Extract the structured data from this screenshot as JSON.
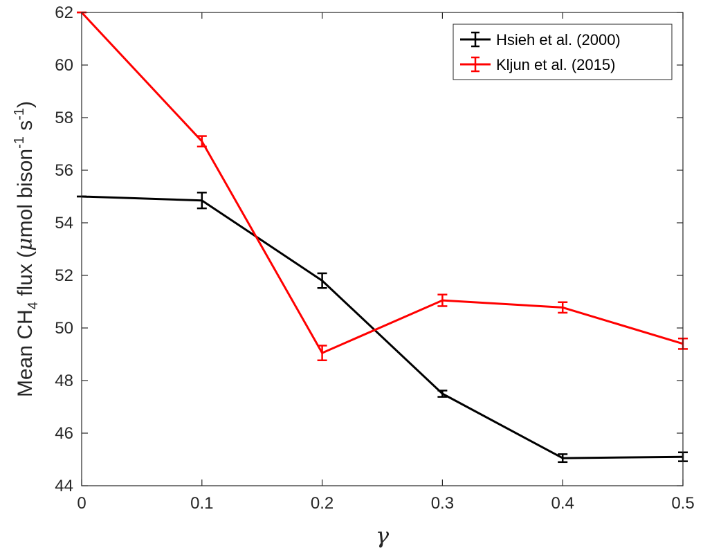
{
  "chart_data": {
    "type": "line",
    "xlabel": "γ",
    "ylabel": {
      "prefix": "Mean CH",
      "sub": "4",
      "mid": " flux (",
      "mu": "μ",
      "unit1": "mol bison",
      "sup1": "-1",
      "unit2": " s",
      "sup2": "-1",
      "suffix": ")"
    },
    "xlim": [
      0,
      0.5
    ],
    "ylim": [
      44,
      62
    ],
    "xticks": [
      0,
      0.1,
      0.2,
      0.3,
      0.4,
      0.5
    ],
    "xtick_labels": [
      "0",
      "0.1",
      "0.2",
      "0.3",
      "0.4",
      "0.5"
    ],
    "yticks": [
      44,
      46,
      48,
      50,
      52,
      54,
      56,
      58,
      60,
      62
    ],
    "ytick_labels": [
      "44",
      "46",
      "48",
      "50",
      "52",
      "54",
      "56",
      "58",
      "60",
      "62"
    ],
    "grid": false,
    "legend_position": "top-right",
    "series": [
      {
        "name": "Hsieh et al. (2000)",
        "color": "#000000",
        "x": [
          0,
          0.1,
          0.2,
          0.3,
          0.4,
          0.5
        ],
        "y": [
          55.0,
          54.85,
          51.8,
          47.5,
          45.05,
          45.1
        ],
        "err": [
          0,
          0.3,
          0.28,
          0.12,
          0.15,
          0.17
        ]
      },
      {
        "name": "Kljun et al. (2015)",
        "color": "#ff0000",
        "x": [
          0,
          0.1,
          0.2,
          0.3,
          0.4,
          0.5
        ],
        "y": [
          62.0,
          57.1,
          49.05,
          51.05,
          50.78,
          49.4
        ],
        "err": [
          0,
          0.2,
          0.28,
          0.22,
          0.2,
          0.2
        ]
      }
    ]
  }
}
